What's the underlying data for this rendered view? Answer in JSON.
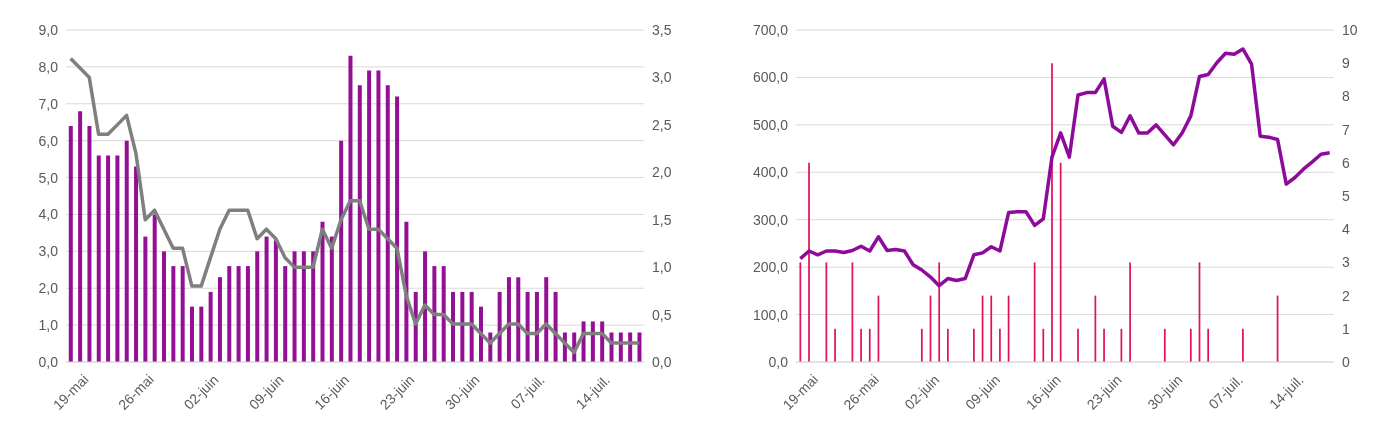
{
  "chart_data": [
    {
      "type": "bar",
      "categories": [
        "19-mai",
        null,
        null,
        null,
        null,
        null,
        null,
        "26-mai",
        null,
        null,
        null,
        null,
        null,
        null,
        "02-juin",
        null,
        null,
        null,
        null,
        null,
        null,
        "09-juin",
        null,
        null,
        null,
        null,
        null,
        null,
        "16-juin",
        null,
        null,
        null,
        null,
        null,
        null,
        "23-juin",
        null,
        null,
        null,
        null,
        null,
        null,
        "30-juin",
        null,
        null,
        null,
        null,
        null,
        null,
        "07-juil.",
        null,
        null,
        null,
        null,
        null,
        null,
        "14-juil.",
        null,
        null,
        null,
        null,
        null
      ],
      "series": [
        {
          "color": "#930f93",
          "values": [
            6.4,
            6.8,
            6.4,
            5.6,
            5.6,
            5.6,
            6.0,
            5.3,
            3.4,
            4.0,
            3.0,
            2.6,
            2.6,
            1.5,
            1.5,
            1.9,
            2.3,
            2.6,
            2.6,
            2.6,
            3.0,
            3.4,
            3.3,
            2.6,
            3.0,
            3.0,
            3.0,
            3.8,
            3.4,
            6.0,
            8.3,
            7.5,
            7.9,
            7.9,
            7.5,
            7.2,
            3.8,
            1.9,
            3.0,
            2.6,
            2.6,
            1.9,
            1.9,
            1.9,
            1.5,
            0.8,
            1.9,
            2.3,
            2.3,
            1.9,
            1.9,
            2.3,
            1.9,
            0.8,
            0.8,
            1.1,
            1.1,
            1.1,
            0.8,
            0.8,
            0.8,
            0.8
          ]
        },
        {
          "type": "line",
          "axis": "y2",
          "color": "#7f7f7f",
          "values": [
            3.2,
            3.1,
            3.0,
            2.4,
            2.4,
            2.5,
            2.6,
            2.2,
            1.5,
            1.6,
            1.4,
            1.2,
            1.2,
            0.8,
            0.8,
            1.1,
            1.4,
            1.6,
            1.6,
            1.6,
            1.3,
            1.4,
            1.3,
            1.1,
            1.0,
            1.0,
            1.0,
            1.4,
            1.2,
            1.5,
            1.7,
            1.7,
            1.4,
            1.4,
            1.3,
            1.2,
            0.7,
            0.4,
            0.6,
            0.5,
            0.5,
            0.4,
            0.4,
            0.4,
            0.3,
            0.2,
            0.3,
            0.4,
            0.4,
            0.3,
            0.3,
            0.4,
            0.3,
            0.2,
            0.1,
            0.3,
            0.3,
            0.3,
            0.2,
            0.2,
            0.2,
            0.2
          ]
        }
      ],
      "ylim": [
        0,
        9
      ],
      "yticks": [
        {
          "value": 0,
          "label": "0,0"
        },
        {
          "value": 1,
          "label": "1,0"
        },
        {
          "value": 2,
          "label": "2,0"
        },
        {
          "value": 3,
          "label": "3,0"
        },
        {
          "value": 4,
          "label": "4,0"
        },
        {
          "value": 5,
          "label": "5,0"
        },
        {
          "value": 6,
          "label": "6,0"
        },
        {
          "value": 7,
          "label": "7,0"
        },
        {
          "value": 8,
          "label": "8,0"
        },
        {
          "value": 9,
          "label": "9,0"
        }
      ],
      "y2lim": [
        0,
        3.5
      ],
      "y2ticks": [
        {
          "value": 0,
          "label": "0,0"
        },
        {
          "value": 0.5,
          "label": "0,5"
        },
        {
          "value": 1,
          "label": "1,0"
        },
        {
          "value": 1.5,
          "label": "1,5"
        },
        {
          "value": 2,
          "label": "2,0"
        },
        {
          "value": 2.5,
          "label": "2,5"
        },
        {
          "value": 3,
          "label": "3,0"
        },
        {
          "value": 3.5,
          "label": "3,5"
        }
      ],
      "grid": "y"
    },
    {
      "type": "bar",
      "categories": [
        "19-mai",
        null,
        null,
        null,
        null,
        null,
        null,
        "26-mai",
        null,
        null,
        null,
        null,
        null,
        null,
        "02-juin",
        null,
        null,
        null,
        null,
        null,
        null,
        "09-juin",
        null,
        null,
        null,
        null,
        null,
        null,
        "16-juin",
        null,
        null,
        null,
        null,
        null,
        null,
        "23-juin",
        null,
        null,
        null,
        null,
        null,
        null,
        "30-juin",
        null,
        null,
        null,
        null,
        null,
        null,
        "07-juil.",
        null,
        null,
        null,
        null,
        null,
        null,
        "14-juil.",
        null,
        null,
        null,
        null,
        null
      ],
      "series": [
        {
          "axis": "y2",
          "color": "#e0115f",
          "values": [
            3,
            6,
            null,
            3,
            1,
            null,
            3,
            1,
            1,
            2,
            null,
            null,
            null,
            null,
            1,
            2,
            3,
            1,
            null,
            null,
            1,
            2,
            2,
            1,
            2,
            null,
            null,
            3,
            1,
            9,
            6,
            null,
            1,
            null,
            2,
            1,
            null,
            1,
            3,
            null,
            null,
            null,
            1,
            null,
            null,
            1,
            3,
            1,
            null,
            null,
            null,
            1,
            null,
            null,
            null,
            2,
            null,
            null,
            null,
            null,
            null,
            null
          ]
        },
        {
          "type": "line",
          "color": "#8e0a9a",
          "values": [
            218,
            234,
            226,
            234,
            234,
            231,
            235,
            244,
            234,
            264,
            235,
            237,
            234,
            205,
            194,
            179,
            161,
            176,
            172,
            176,
            226,
            230,
            243,
            234,
            315,
            317,
            317,
            288,
            302,
            432,
            483,
            432,
            563,
            568,
            568,
            597,
            497,
            484,
            519,
            483,
            483,
            500,
            479,
            458,
            483,
            519,
            602,
            606,
            631,
            651,
            649,
            660,
            628,
            476,
            474,
            469,
            375,
            389,
            407,
            422,
            438,
            441
          ]
        }
      ],
      "ylim": [
        0,
        700
      ],
      "yticks": [
        {
          "value": 0,
          "label": "0,0"
        },
        {
          "value": 100,
          "label": "100,0"
        },
        {
          "value": 200,
          "label": "200,0"
        },
        {
          "value": 300,
          "label": "300,0"
        },
        {
          "value": 400,
          "label": "400,0"
        },
        {
          "value": 500,
          "label": "500,0"
        },
        {
          "value": 600,
          "label": "600,0"
        },
        {
          "value": 700,
          "label": "700,0"
        }
      ],
      "y2lim": [
        0,
        10
      ],
      "y2ticks": [
        0,
        1,
        2,
        3,
        4,
        5,
        6,
        7,
        8,
        9,
        10
      ],
      "grid": "y"
    }
  ]
}
